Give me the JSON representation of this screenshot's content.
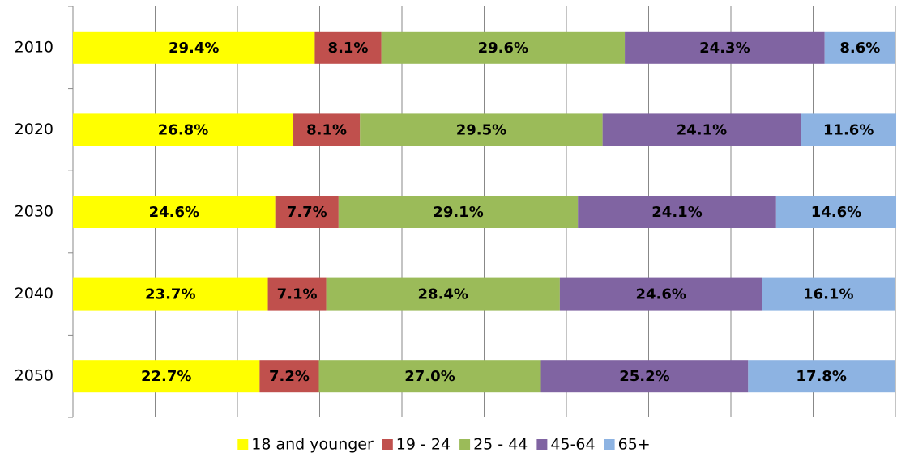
{
  "chart_data": {
    "type": "stacked-bar-horizontal",
    "categories": [
      "2010",
      "2020",
      "2030",
      "2040",
      "2050"
    ],
    "series": [
      {
        "name": "18 and younger",
        "color": "#ffff00",
        "values": [
          29.4,
          26.8,
          24.6,
          23.7,
          22.7
        ],
        "value_labels": [
          "29.4%",
          "26.8%",
          "24.6%",
          "23.7%",
          "22.7%"
        ]
      },
      {
        "name": "19 - 24",
        "color": "#c0504d",
        "values": [
          8.1,
          8.1,
          7.7,
          7.1,
          7.2
        ],
        "value_labels": [
          "8.1%",
          "8.1%",
          "7.7%",
          "7.1%",
          "7.2%"
        ]
      },
      {
        "name": "25 - 44",
        "color": "#9bbb59",
        "values": [
          29.6,
          29.5,
          29.1,
          28.4,
          27.0
        ],
        "value_labels": [
          "29.6%",
          "29.5%",
          "29.1%",
          "28.4%",
          "27.0%"
        ]
      },
      {
        "name": "45-64",
        "color": "#8064a2",
        "values": [
          24.3,
          24.1,
          24.1,
          24.6,
          25.2
        ],
        "value_labels": [
          "24.3%",
          "24.1%",
          "24.1%",
          "24.6%",
          "25.2%"
        ]
      },
      {
        "name": "65+",
        "color": "#8db3e2",
        "values": [
          8.6,
          11.6,
          14.6,
          16.1,
          17.8
        ],
        "value_labels": [
          "8.6%",
          "11.6%",
          "14.6%",
          "16.1%",
          "17.8%"
        ]
      }
    ],
    "xlim": [
      0,
      100
    ],
    "xticks": [
      0,
      10,
      20,
      30,
      40,
      50,
      60,
      70,
      80,
      90,
      100
    ],
    "grid": true,
    "legend": "bottom"
  }
}
